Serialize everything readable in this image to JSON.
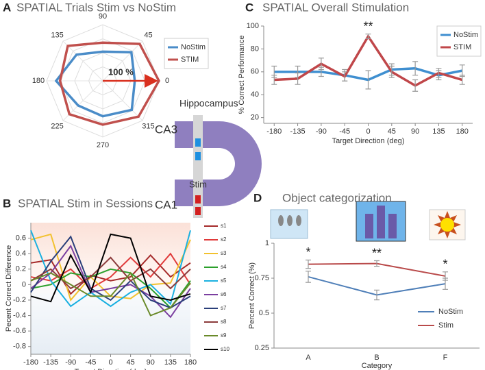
{
  "chart_data": [
    {
      "type": "radar",
      "panel": "A",
      "title": "SPATIAL Trials  Stim vs NoStim",
      "theta": [
        0,
        45,
        90,
        135,
        180,
        225,
        270,
        315
      ],
      "rlim": [
        0,
        100
      ],
      "arrow_label": "100 %",
      "legend": "upper right",
      "series": [
        {
          "name": "NoStim",
          "color": "#4a8cc8",
          "values": [
            57,
            72,
            52,
            66,
            83,
            62,
            63,
            73
          ]
        },
        {
          "name": "STIM",
          "color": "#c0504d",
          "values": [
            100,
            93,
            68,
            88,
            76,
            84,
            78,
            90
          ]
        }
      ]
    },
    {
      "type": "line",
      "panel": "B",
      "title": "SPATIAL Stim in Sessions",
      "x": [
        -180,
        -135,
        -90,
        -45,
        0,
        45,
        90,
        135,
        180
      ],
      "xlim": [
        -180,
        180
      ],
      "xticks": [
        -180,
        -135,
        -90,
        -45,
        0,
        45,
        90,
        135,
        180
      ],
      "ylim": [
        -0.9,
        0.8
      ],
      "yticks": [
        -0.8,
        -0.6,
        -0.4,
        -0.2,
        0,
        0.2,
        0.4,
        0.6
      ],
      "xlabel": "Target Direction (deg)",
      "ylabel": "Pecent Correct Difference",
      "legend": "right",
      "series": [
        {
          "name": "s1",
          "color": "#a52a2a",
          "values": [
            0.28,
            0.32,
            -0.12,
            0.12,
            0.05,
            0.1,
            0.38,
            0.1,
            0.28
          ]
        },
        {
          "name": "s2",
          "color": "#e03a3a",
          "values": [
            0.1,
            0.05,
            0.2,
            -0.05,
            0.1,
            0.35,
            0.1,
            0.4,
            0.0
          ]
        },
        {
          "name": "s3",
          "color": "#f2c12e",
          "values": [
            0.58,
            0.65,
            -0.2,
            0.1,
            -0.15,
            -0.18,
            0.0,
            0.02,
            0.58
          ]
        },
        {
          "name": "s4",
          "color": "#2ca02c",
          "values": [
            -0.05,
            0.0,
            0.15,
            0.1,
            0.2,
            0.15,
            -0.05,
            -0.3,
            0.05
          ]
        },
        {
          "name": "s5",
          "color": "#1ab0e0",
          "values": [
            0.7,
            0.05,
            -0.28,
            -0.1,
            -0.28,
            -0.1,
            0.0,
            -0.25,
            0.7
          ]
        },
        {
          "name": "s6",
          "color": "#7b3fa0",
          "values": [
            -0.05,
            0.15,
            0.5,
            -0.1,
            -0.05,
            0.0,
            -0.15,
            -0.42,
            -0.05
          ]
        },
        {
          "name": "s7",
          "color": "#2a3f7a",
          "values": [
            -0.1,
            0.3,
            0.62,
            -0.05,
            -0.2,
            0.05,
            -0.2,
            -0.3,
            -0.15
          ]
        },
        {
          "name": "s8",
          "color": "#8b3a3a",
          "values": [
            0.05,
            0.2,
            -0.05,
            0.1,
            0.35,
            0.05,
            0.2,
            -0.05,
            0.2
          ]
        },
        {
          "name": "s9",
          "color": "#6a8a2a",
          "values": [
            0.05,
            0.15,
            0.0,
            -0.15,
            -0.15,
            0.15,
            -0.4,
            -0.3,
            0.02
          ]
        },
        {
          "name": "s10",
          "color": "#000000",
          "values": [
            -0.15,
            -0.22,
            0.38,
            -0.1,
            0.65,
            0.6,
            -0.15,
            -0.2,
            -0.12
          ]
        }
      ]
    },
    {
      "type": "line",
      "panel": "C",
      "title": "SPATIAL Overall Stimulation",
      "x": [
        -180,
        -135,
        -90,
        -45,
        0,
        45,
        90,
        135,
        180
      ],
      "xlim": [
        -200,
        200
      ],
      "xticks": [
        -180,
        -135,
        -90,
        -45,
        0,
        45,
        90,
        135,
        180
      ],
      "ylim": [
        15,
        100
      ],
      "yticks": [
        20,
        40,
        60,
        80,
        100
      ],
      "xlabel": "Target Direction (deg)",
      "ylabel": "% Correct Performance",
      "legend": "upper right",
      "annotations": [
        null,
        null,
        null,
        null,
        "**",
        null,
        null,
        null,
        null
      ],
      "series": [
        {
          "name": "NoStim",
          "color": "#3f8fd0",
          "values": [
            60,
            60,
            60,
            57,
            53,
            62,
            63,
            57,
            61
          ],
          "errors": [
            5,
            5,
            4,
            5,
            8,
            5,
            6,
            4,
            5
          ]
        },
        {
          "name": "STIM",
          "color": "#c0474a",
          "values": [
            53,
            54,
            67,
            56,
            91,
            60,
            48,
            59,
            53
          ],
          "errors": [
            4,
            5,
            5,
            4,
            2,
            5,
            5,
            4,
            4
          ]
        }
      ]
    },
    {
      "type": "line",
      "panel": "D",
      "title": "Object categorization",
      "categories": [
        "A",
        "B",
        "F"
      ],
      "ylim": [
        0.25,
        1
      ],
      "yticks": [
        0.25,
        0.5,
        0.75,
        1
      ],
      "xlabel": "Category",
      "ylabel": "Percent Correct (%)",
      "legend": "lower right",
      "annotations": [
        "*",
        "**",
        "*"
      ],
      "series": [
        {
          "name": "NoStim",
          "color": "#4f7fb8",
          "values": [
            0.76,
            0.63,
            0.71
          ],
          "errors": [
            0.04,
            0.035,
            0.04
          ]
        },
        {
          "name": "Stim",
          "color": "#b94a4a",
          "values": [
            0.85,
            0.855,
            0.765
          ],
          "errors": [
            0.03,
            0.02,
            0.03
          ]
        }
      ]
    }
  ],
  "diagram": {
    "title": "Hippocampus",
    "ca3": "CA3",
    "stim": "Stim",
    "ca1": "CA1"
  }
}
